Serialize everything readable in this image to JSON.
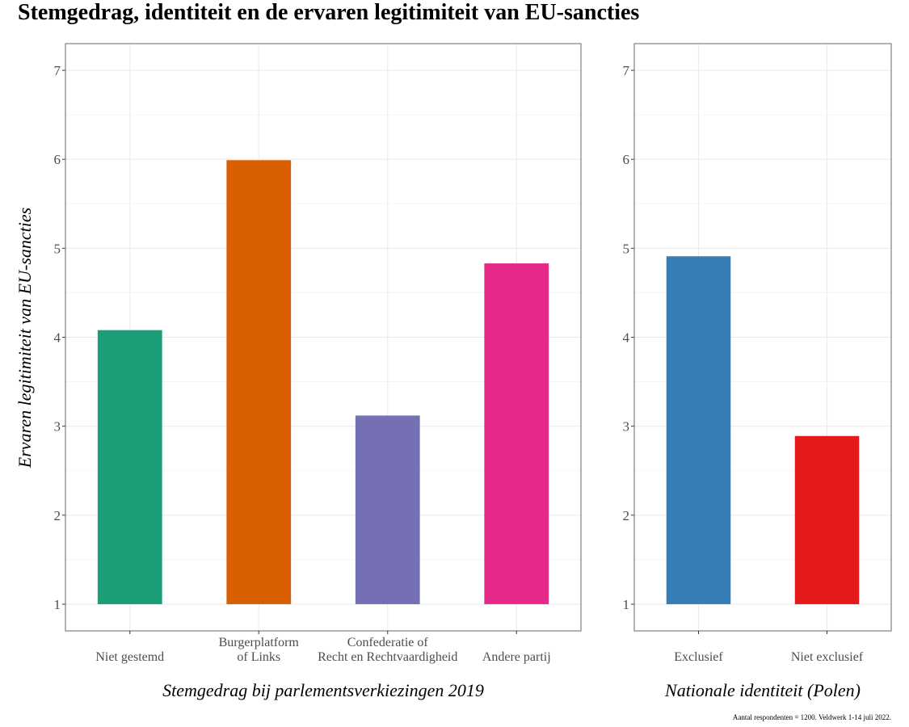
{
  "title": "Stemgedrag, identiteit en de ervaren legitimiteit van EU-sancties",
  "caption": "Aantal respondenten = 1200. Veldwerk 1-14 juli 2022.",
  "chart_data": [
    {
      "type": "bar",
      "title": "",
      "xlabel": "Stemgedrag bij parlementsverkiezingen 2019",
      "ylabel": "Ervaren legitimiteit van EU-sancties",
      "ylim": [
        0.7,
        7.3
      ],
      "yticks": [
        1,
        2,
        3,
        4,
        5,
        6,
        7
      ],
      "bar_base": 1,
      "grid": true,
      "categories": [
        [
          "Niet gestemd"
        ],
        [
          "Burgerplatform",
          "of Links"
        ],
        [
          "Confederatie of",
          "Recht en Rechtvaardigheid"
        ],
        [
          "Andere partij"
        ]
      ],
      "values": [
        4.08,
        5.99,
        3.12,
        4.83
      ],
      "colors": [
        "#1b9e77",
        "#d95f02",
        "#7570b3",
        "#e7298a"
      ]
    },
    {
      "type": "bar",
      "title": "",
      "xlabel": "Nationale identiteit (Polen)",
      "ylabel": "",
      "ylim": [
        0.7,
        7.3
      ],
      "yticks": [
        1,
        2,
        3,
        4,
        5,
        6,
        7
      ],
      "bar_base": 1,
      "grid": true,
      "categories": [
        [
          "Exclusief"
        ],
        [
          "Niet exclusief"
        ]
      ],
      "values": [
        4.91,
        2.89
      ],
      "colors": [
        "#377eb8",
        "#e41a1c"
      ]
    }
  ]
}
